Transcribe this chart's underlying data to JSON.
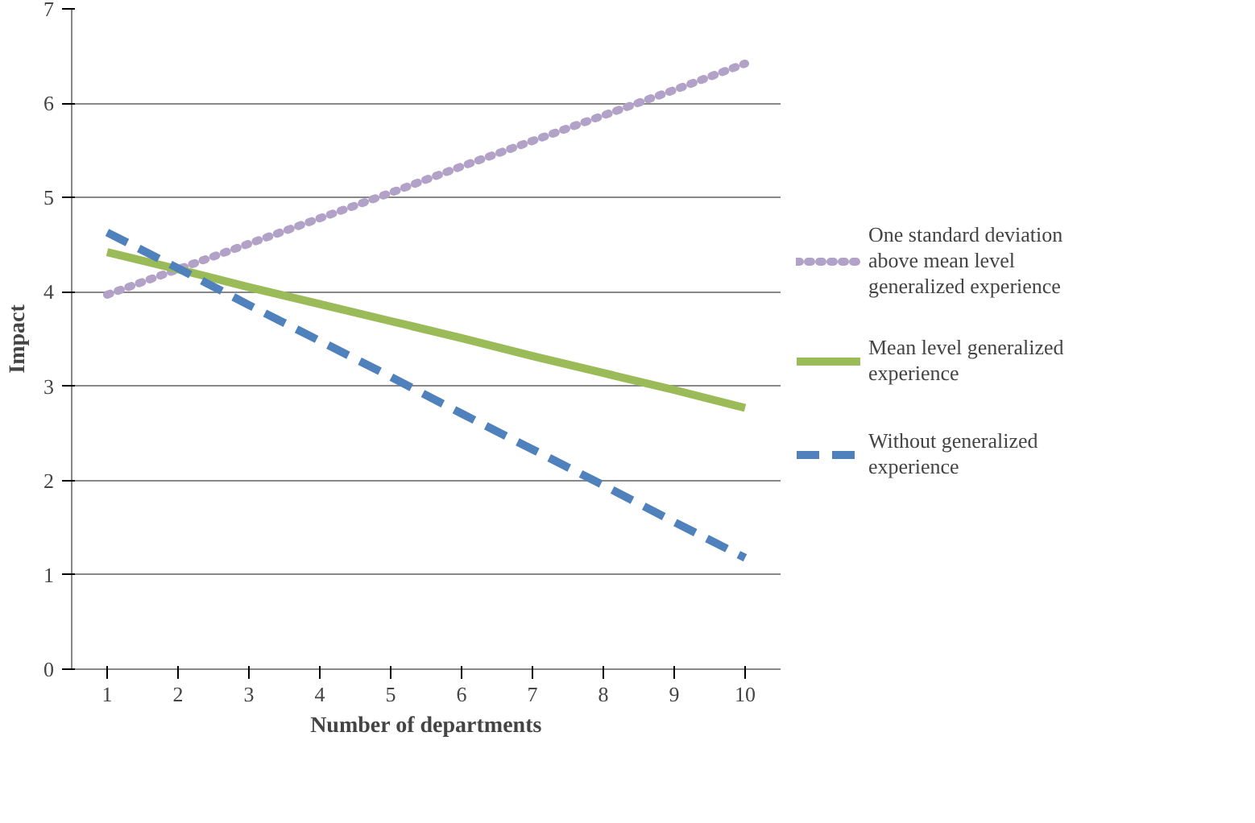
{
  "chart_data": {
    "type": "line",
    "xlabel": "Number of departments",
    "ylabel": "Impact",
    "categories": [
      "1",
      "2",
      "3",
      "4",
      "5",
      "6",
      "7",
      "8",
      "9",
      "10"
    ],
    "series": [
      {
        "name": "One standard deviation above mean level generalized experience",
        "color": "#b3a2c7",
        "line_style": "dotted",
        "values": [
          3.97,
          4.24,
          4.51,
          4.78,
          5.05,
          5.33,
          5.6,
          5.87,
          6.14,
          6.42
        ]
      },
      {
        "name": "Mean level generalized experience",
        "color": "#9bbb59",
        "line_style": "solid",
        "values": [
          4.42,
          4.24,
          4.05,
          3.87,
          3.69,
          3.51,
          3.32,
          3.14,
          2.96,
          2.77
        ]
      },
      {
        "name": "Without generalized experience",
        "color": "#4f81bd",
        "line_style": "dashed",
        "values": [
          4.63,
          4.25,
          3.86,
          3.48,
          3.1,
          2.71,
          2.33,
          1.95,
          1.56,
          1.18
        ]
      }
    ],
    "ylim": [
      0,
      7
    ],
    "yticks": [
      0,
      1,
      2,
      3,
      4,
      5,
      6,
      7
    ],
    "grid": "y",
    "legend": "right"
  }
}
